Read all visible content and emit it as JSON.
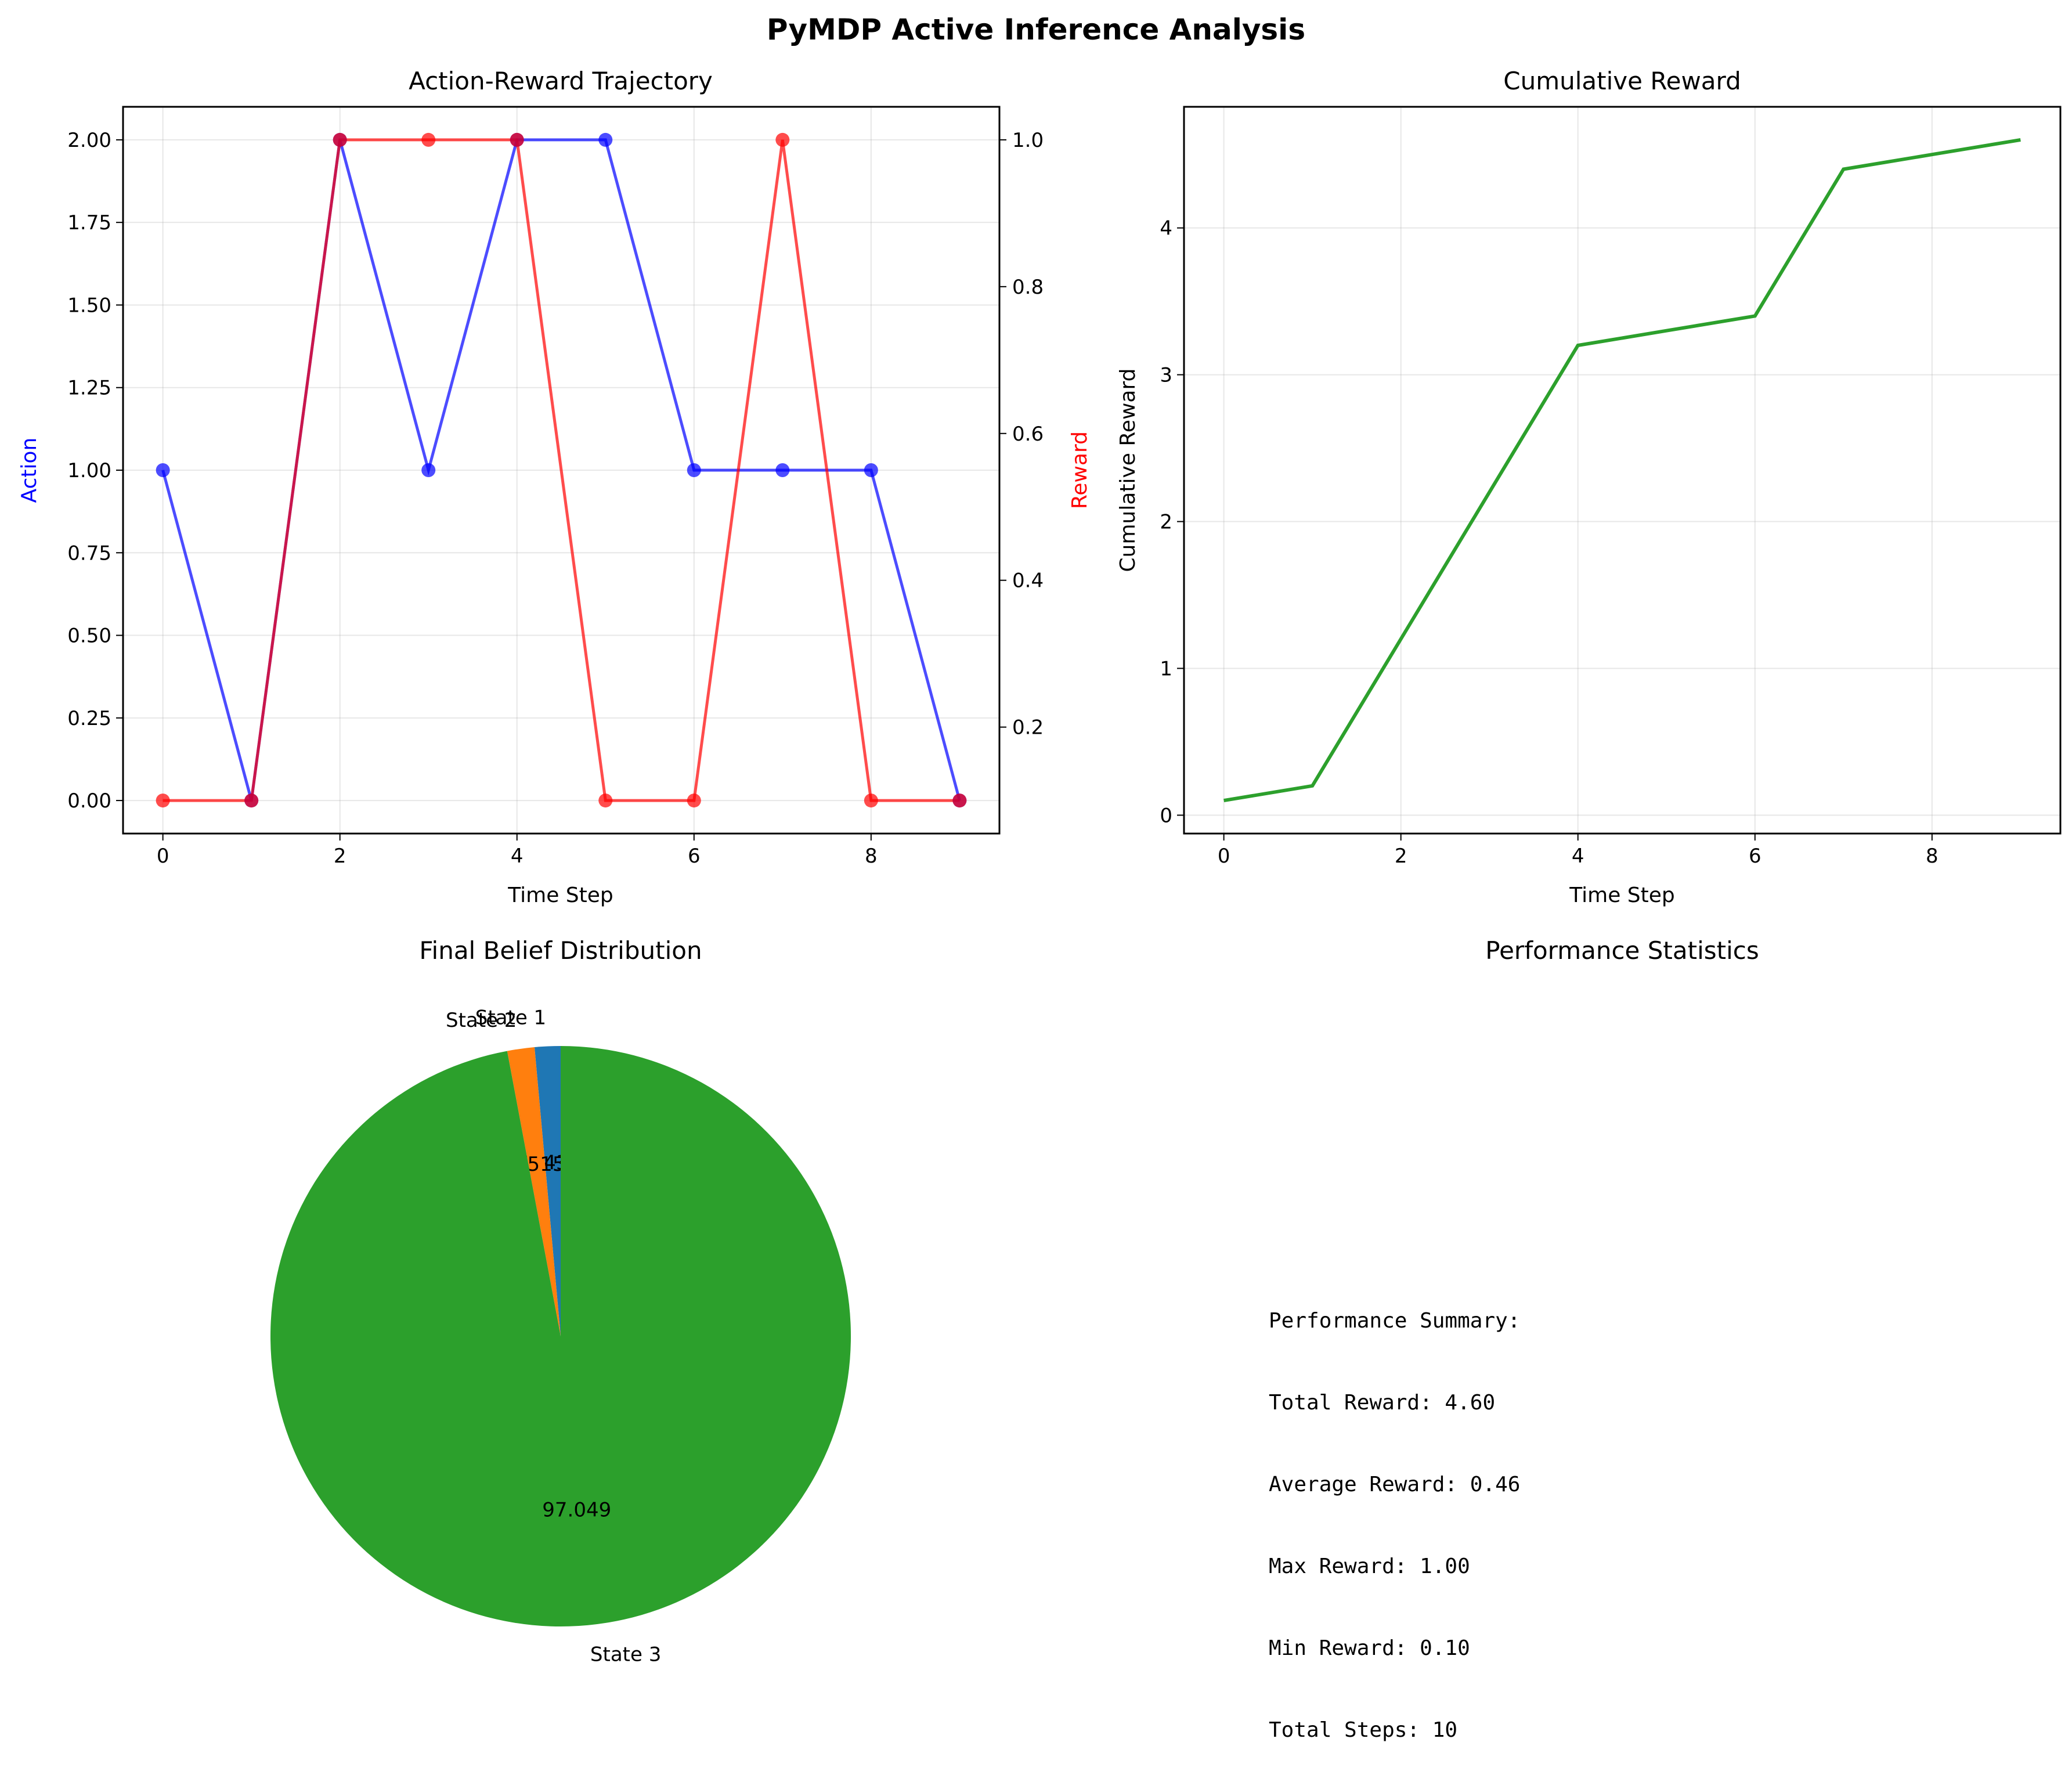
{
  "figure": {
    "suptitle": "PyMDP Active Inference Analysis"
  },
  "chart_data": [
    {
      "type": "line",
      "title": "Action-Reward Trajectory",
      "xlabel": "Time Step",
      "ylabel": "Action",
      "ylabel_right": "Reward",
      "x": [
        0,
        1,
        2,
        3,
        4,
        5,
        6,
        7,
        8,
        9
      ],
      "series": [
        {
          "name": "Action",
          "axis": "left",
          "color": "#0000ff",
          "values": [
            1,
            0,
            2,
            1,
            2,
            2,
            1,
            1,
            1,
            0
          ]
        },
        {
          "name": "Reward",
          "axis": "right",
          "color": "#ff0000",
          "values": [
            0.1,
            0.1,
            1.0,
            1.0,
            1.0,
            0.1,
            0.1,
            1.0,
            0.1,
            0.1
          ]
        }
      ],
      "xlim": [
        -0.45,
        9.45
      ],
      "ylim": [
        -0.1,
        2.1
      ],
      "ylim_right": [
        0.055,
        1.045
      ],
      "xticks": [
        "0",
        "2",
        "4",
        "6",
        "8"
      ],
      "yticks": [
        "0.00",
        "0.25",
        "0.50",
        "0.75",
        "1.00",
        "1.25",
        "1.50",
        "1.75",
        "2.00"
      ],
      "yticks_right": [
        "0.2",
        "0.4",
        "0.6",
        "0.8",
        "1.0"
      ],
      "grid": true
    },
    {
      "type": "line",
      "title": "Cumulative Reward",
      "xlabel": "Time Step",
      "ylabel": "Cumulative Reward",
      "x": [
        0,
        1,
        2,
        3,
        4,
        5,
        6,
        7,
        8,
        9
      ],
      "series": [
        {
          "color": "#2ca02c",
          "values": [
            0.1,
            0.2,
            1.2,
            2.2,
            3.2,
            3.3,
            3.4,
            4.4,
            4.5,
            4.6
          ]
        }
      ],
      "xlim": [
        -0.45,
        9.45
      ],
      "ylim": [
        -0.125,
        4.825
      ],
      "xticks": [
        "0",
        "2",
        "4",
        "6",
        "8"
      ],
      "yticks": [
        "0",
        "1",
        "2",
        "3",
        "4"
      ],
      "grid": true
    },
    {
      "type": "pie",
      "title": "Final Belief Distribution",
      "labels": [
        "State 1",
        "State 2",
        "State 3"
      ],
      "values": [
        1.436,
        1.515,
        97.049
      ],
      "value_labels": [
        "1.436",
        "1.515",
        "97.049"
      ],
      "colors": [
        "#1f77b4",
        "#ff7f0e",
        "#2ca02c"
      ]
    }
  ],
  "stats": {
    "title": "Performance Statistics",
    "lines": [
      "Performance Summary:",
      "Total Reward: 4.60",
      "Average Reward: 0.46",
      "Max Reward: 1.00",
      "Min Reward: 0.10",
      "Total Steps: 10"
    ]
  }
}
